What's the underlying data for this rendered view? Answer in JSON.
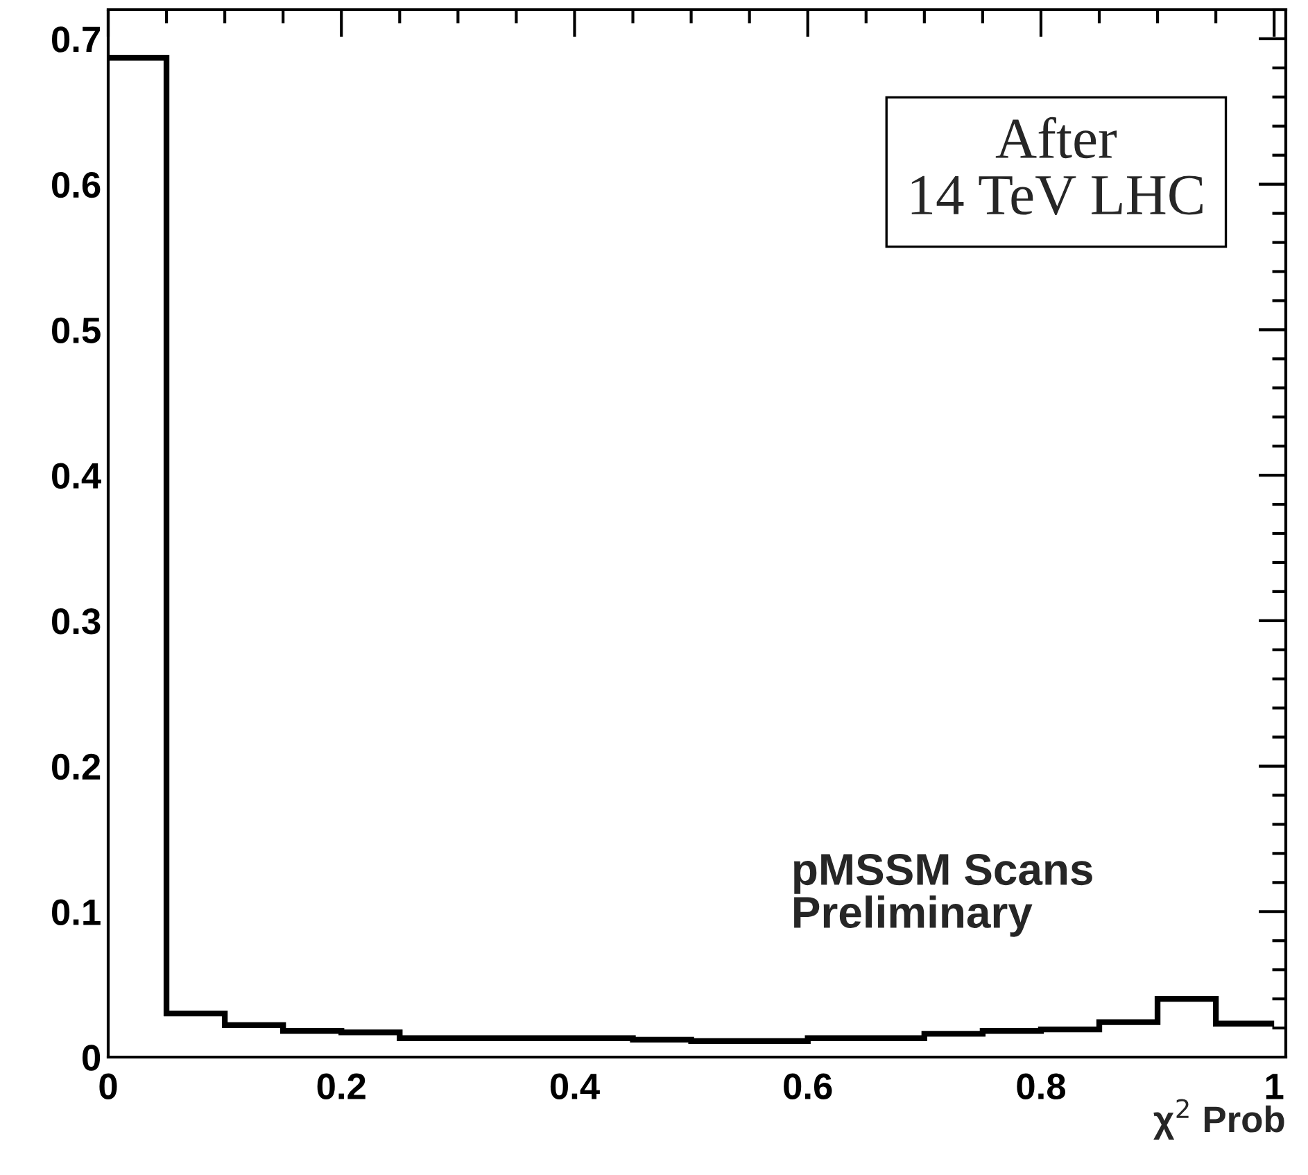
{
  "chart_data": {
    "type": "histogram",
    "xlabel": "χ$^{2}$ Prob",
    "bins": [
      0,
      0.05,
      0.1,
      0.15,
      0.2,
      0.25,
      0.3,
      0.35,
      0.4,
      0.45,
      0.5,
      0.55,
      0.6,
      0.65,
      0.7,
      0.75,
      0.8,
      0.85,
      0.9,
      0.95,
      1.0
    ],
    "values": [
      0.687,
      0.03,
      0.022,
      0.018,
      0.017,
      0.013,
      0.013,
      0.013,
      0.013,
      0.012,
      0.011,
      0.011,
      0.013,
      0.013,
      0.016,
      0.018,
      0.019,
      0.024,
      0.04,
      0.023
    ],
    "color": "#000000",
    "xlim": [
      0,
      1.01
    ],
    "ylim": [
      0,
      0.72
    ],
    "xticks": [
      0,
      0.2,
      0.4,
      0.6,
      0.8,
      1
    ],
    "yticks": [
      0,
      0.1,
      0.2,
      0.3,
      0.4,
      0.5,
      0.6,
      0.7
    ],
    "annotations": [
      "After\n14 TeV LHC",
      "pMSSM Scans\nPreliminary"
    ],
    "grid": false
  }
}
